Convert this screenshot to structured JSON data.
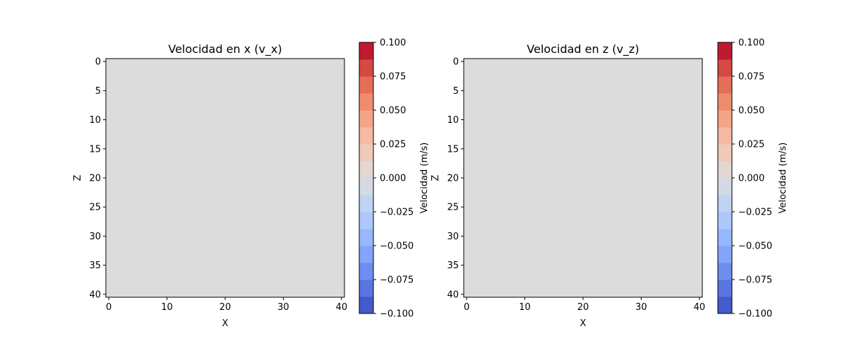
{
  "chart_data": [
    {
      "type": "heatmap",
      "title": "Velocidad en x (v_x)",
      "xlabel": "X",
      "ylabel": "Z",
      "xlim": [
        -0.5,
        40.5
      ],
      "ylim": [
        40.5,
        -0.5
      ],
      "x_ticks": [
        "0",
        "10",
        "20",
        "30",
        "40"
      ],
      "y_ticks": [
        "0",
        "5",
        "10",
        "15",
        "20",
        "25",
        "30",
        "35",
        "40"
      ],
      "field_value": 0,
      "fill_color": "#dcdcdc",
      "colorbar": {
        "label": "Velocidad (m/s)",
        "range": [
          -0.1,
          0.1
        ],
        "ticks": [
          "0.100",
          "0.075",
          "0.050",
          "0.025",
          "0.000",
          "−0.025",
          "−0.050",
          "−0.075",
          "−0.100"
        ],
        "colormap": "coolwarm"
      }
    },
    {
      "type": "heatmap",
      "title": "Velocidad en z (v_z)",
      "xlabel": "X",
      "ylabel": "Z",
      "xlim": [
        -0.5,
        40.5
      ],
      "ylim": [
        40.5,
        -0.5
      ],
      "x_ticks": [
        "0",
        "10",
        "20",
        "30",
        "40"
      ],
      "y_ticks": [
        "0",
        "5",
        "10",
        "15",
        "20",
        "25",
        "30",
        "35",
        "40"
      ],
      "field_value": 0,
      "fill_color": "#dcdcdc",
      "colorbar": {
        "label": "Velocidad (m/s)",
        "range": [
          -0.1,
          0.1
        ],
        "ticks": [
          "0.100",
          "0.075",
          "0.050",
          "0.025",
          "0.000",
          "−0.025",
          "−0.050",
          "−0.075",
          "−0.100"
        ],
        "colormap": "coolwarm"
      }
    }
  ]
}
